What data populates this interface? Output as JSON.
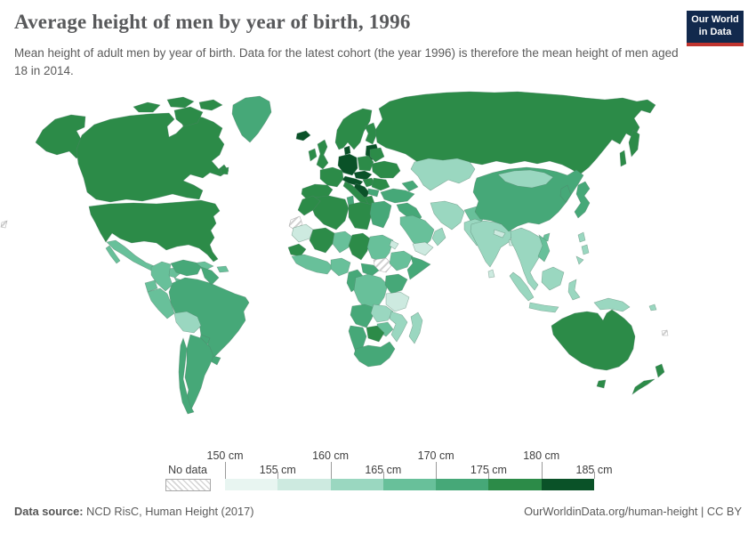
{
  "header": {
    "title": "Average height of men by year of birth, 1996",
    "subtitle": "Mean height of adult men by year of birth. Data for the latest cohort (the year 1996) is therefore the mean height of men aged 18 in 2014.",
    "logo": {
      "line1": "Our World",
      "line2": "in Data"
    }
  },
  "legend": {
    "no_data_label": "No data",
    "unit": "cm",
    "tick_labels": [
      "150 cm",
      "155 cm",
      "160 cm",
      "165 cm",
      "170 cm",
      "175 cm",
      "180 cm",
      "185 cm"
    ],
    "bins": [
      {
        "min": 150,
        "max": 155,
        "color": "#e8f5f1"
      },
      {
        "min": 155,
        "max": 160,
        "color": "#cdeae0"
      },
      {
        "min": 160,
        "max": 165,
        "color": "#9ad7c0"
      },
      {
        "min": 165,
        "max": 170,
        "color": "#68c09a"
      },
      {
        "min": 170,
        "max": 175,
        "color": "#46a878"
      },
      {
        "min": 175,
        "max": 180,
        "color": "#2c8b48"
      },
      {
        "min": 180,
        "max": 185,
        "color": "#0a5228"
      }
    ]
  },
  "footer": {
    "source_label": "Data source:",
    "source": " NCD RisC, Human Height (2017)",
    "link": "OurWorldinData.org/human-height | CC BY"
  },
  "chart_data": {
    "type": "choropleth",
    "title": "Average height of men by year of birth, 1996",
    "unit": "cm",
    "value_range": [
      150,
      185
    ],
    "legend_position": "bottom",
    "bins": [
      {
        "range": "150–155 cm",
        "color": "#e8f5f1"
      },
      {
        "range": "155–160 cm",
        "color": "#cdeae0"
      },
      {
        "range": "160–165 cm",
        "color": "#9ad7c0"
      },
      {
        "range": "165–170 cm",
        "color": "#68c09a"
      },
      {
        "range": "170–175 cm",
        "color": "#46a878"
      },
      {
        "range": "175–180 cm",
        "color": "#2c8b48"
      },
      {
        "range": "180–185 cm",
        "color": "#0a5228"
      }
    ],
    "no_data_regions": [
      "South Sudan",
      "Western Sahara",
      "New Caledonia"
    ],
    "regions": {
      "alaska": {
        "label": "United States (Alaska)",
        "bin": 6
      },
      "canada": {
        "label": "Canada",
        "bin": 6
      },
      "usa": {
        "label": "United States",
        "bin": 6
      },
      "greenland": {
        "label": "Greenland",
        "bin": 5
      },
      "iceland": {
        "label": "Iceland",
        "bin": 7
      },
      "mexico": {
        "label": "Mexico",
        "bin": 4
      },
      "central-america": {
        "label": "Central America",
        "bin": 4
      },
      "cuba": {
        "label": "Cuba",
        "bin": 4
      },
      "hispaniola": {
        "label": "Hispaniola",
        "bin": 4
      },
      "colombia": {
        "label": "Colombia",
        "bin": 4
      },
      "venezuela": {
        "label": "Venezuela",
        "bin": 5
      },
      "guyanas": {
        "label": "Guyana & Suriname",
        "bin": 5
      },
      "ecuador": {
        "label": "Ecuador",
        "bin": 4
      },
      "peru": {
        "label": "Peru",
        "bin": 4
      },
      "bolivia": {
        "label": "Bolivia",
        "bin": 3
      },
      "brazil": {
        "label": "Brazil",
        "bin": 5
      },
      "paraguay": {
        "label": "Paraguay",
        "bin": 5
      },
      "uruguay": {
        "label": "Uruguay",
        "bin": 5
      },
      "argentina": {
        "label": "Argentina",
        "bin": 5
      },
      "chile": {
        "label": "Chile",
        "bin": 5
      },
      "iberia": {
        "label": "Spain & Portugal",
        "bin": 6
      },
      "france": {
        "label": "France",
        "bin": 6
      },
      "uk": {
        "label": "United Kingdom",
        "bin": 6
      },
      "ireland": {
        "label": "Ireland",
        "bin": 6
      },
      "scandinavia": {
        "label": "Norway & Sweden",
        "bin": 6
      },
      "finland": {
        "label": "Finland",
        "bin": 6
      },
      "denmark": {
        "label": "Denmark",
        "bin": 7
      },
      "germany-lowlands": {
        "label": "Germany, Netherlands & Belgium",
        "bin": 7
      },
      "baltics": {
        "label": "Baltic states",
        "bin": 7
      },
      "poland": {
        "label": "Poland",
        "bin": 6
      },
      "belarus": {
        "label": "Belarus",
        "bin": 6
      },
      "ukraine": {
        "label": "Ukraine",
        "bin": 6
      },
      "czech-slovakia": {
        "label": "Czechia & Slovakia",
        "bin": 7
      },
      "austria-switzerland": {
        "label": "Austria & Switzerland",
        "bin": 7
      },
      "hungary": {
        "label": "Hungary",
        "bin": 6
      },
      "romania": {
        "label": "Romania",
        "bin": 6
      },
      "balkans": {
        "label": "Croatia, Bosnia & Serbia",
        "bin": 7
      },
      "bulgaria": {
        "label": "Bulgaria",
        "bin": 5
      },
      "greece": {
        "label": "Greece",
        "bin": 6
      },
      "italy": {
        "label": "Italy",
        "bin": 6
      },
      "russia": {
        "label": "Russia",
        "bin": 6
      },
      "central-asia": {
        "label": "Kazakhstan & Central Asia",
        "bin": 3
      },
      "caucasus": {
        "label": "Caucasus",
        "bin": 5
      },
      "turkey": {
        "label": "Turkey",
        "bin": 5
      },
      "levant": {
        "label": "Syria, Iraq & Levant",
        "bin": 5
      },
      "saudi": {
        "label": "Saudi Arabia",
        "bin": 4
      },
      "yemen": {
        "label": "Yemen",
        "bin": 2
      },
      "oman": {
        "label": "Oman",
        "bin": 3
      },
      "iran": {
        "label": "Iran",
        "bin": 3
      },
      "afghanistan": {
        "label": "Afghanistan",
        "bin": 4
      },
      "pakistan": {
        "label": "Pakistan",
        "bin": 3
      },
      "india": {
        "label": "India",
        "bin": 3
      },
      "sri-lanka": {
        "label": "Sri Lanka",
        "bin": 2
      },
      "nepal": {
        "label": "Nepal",
        "bin": 2
      },
      "bangladesh": {
        "label": "Bangladesh",
        "bin": 2
      },
      "china": {
        "label": "China",
        "bin": 5
      },
      "mongolia": {
        "label": "Mongolia",
        "bin": 3
      },
      "korea": {
        "label": "Korea",
        "bin": 5
      },
      "japan": {
        "label": "Japan",
        "bin": 5
      },
      "taiwan": {
        "label": "Taiwan",
        "bin": 4
      },
      "se-asia": {
        "label": "Myanmar, Thailand & Indochina",
        "bin": 3
      },
      "vietnam": {
        "label": "Vietnam",
        "bin": 4
      },
      "philippines": {
        "label": "Philippines",
        "bin": 3
      },
      "borneo": {
        "label": "Malaysia & Borneo",
        "bin": 3
      },
      "sumatra": {
        "label": "Indonesia (Sumatra)",
        "bin": 3
      },
      "java": {
        "label": "Indonesia (Java)",
        "bin": 3
      },
      "sulawesi": {
        "label": "Indonesia (Sulawesi)",
        "bin": 3
      },
      "new-guinea": {
        "label": "Papua New Guinea",
        "bin": 3
      },
      "pacific": {
        "label": "Pacific islands",
        "bin": 3
      },
      "new-caledonia": {
        "label": "New Caledonia",
        "bin": 0
      },
      "morocco": {
        "label": "Morocco",
        "bin": 6
      },
      "algeria": {
        "label": "Algeria",
        "bin": 6
      },
      "tunisia": {
        "label": "Tunisia",
        "bin": 5
      },
      "libya": {
        "label": "Libya",
        "bin": 6
      },
      "egypt": {
        "label": "Egypt",
        "bin": 5
      },
      "western-sahara": {
        "label": "Western Sahara",
        "bin": 0
      },
      "mauritania": {
        "label": "Mauritania",
        "bin": 2
      },
      "mali": {
        "label": "Mali",
        "bin": 6
      },
      "niger": {
        "label": "Niger",
        "bin": 4
      },
      "chad": {
        "label": "Chad",
        "bin": 6
      },
      "sudan": {
        "label": "Sudan",
        "bin": 4
      },
      "south-sudan": {
        "label": "South Sudan",
        "bin": 0
      },
      "eritrea": {
        "label": "Eritrea",
        "bin": 2
      },
      "ethiopia": {
        "label": "Ethiopia",
        "bin": 4
      },
      "somalia": {
        "label": "Somalia",
        "bin": 5
      },
      "senegal": {
        "label": "Senegal & Gambia",
        "bin": 6
      },
      "west-africa": {
        "label": "Guinea & West Africa",
        "bin": 4
      },
      "nigeria": {
        "label": "Nigeria",
        "bin": 4
      },
      "cameroon": {
        "label": "Cameroon & Gabon",
        "bin": 5
      },
      "car": {
        "label": "Central African Republic",
        "bin": 5
      },
      "drc": {
        "label": "DR Congo",
        "bin": 4
      },
      "kenya": {
        "label": "Uganda & Kenya",
        "bin": 5
      },
      "tanzania": {
        "label": "Tanzania",
        "bin": 2
      },
      "angola": {
        "label": "Angola",
        "bin": 5
      },
      "zambia": {
        "label": "Zambia",
        "bin": 3
      },
      "mozambique": {
        "label": "Mozambique",
        "bin": 3
      },
      "zimbabwe": {
        "label": "Zimbabwe",
        "bin": 4
      },
      "botswana": {
        "label": "Botswana",
        "bin": 6
      },
      "namibia": {
        "label": "Namibia",
        "bin": 5
      },
      "south-africa": {
        "label": "South Africa",
        "bin": 5
      },
      "madagascar": {
        "label": "Madagascar",
        "bin": 3
      },
      "australia": {
        "label": "Australia",
        "bin": 6
      },
      "new-zealand": {
        "label": "New Zealand",
        "bin": 6
      },
      "left-edge-island": {
        "label": "Pacific island (edge)",
        "bin": 0
      }
    }
  },
  "map": {
    "ocean_color": "#ffffff",
    "border_color": "#54806a"
  }
}
